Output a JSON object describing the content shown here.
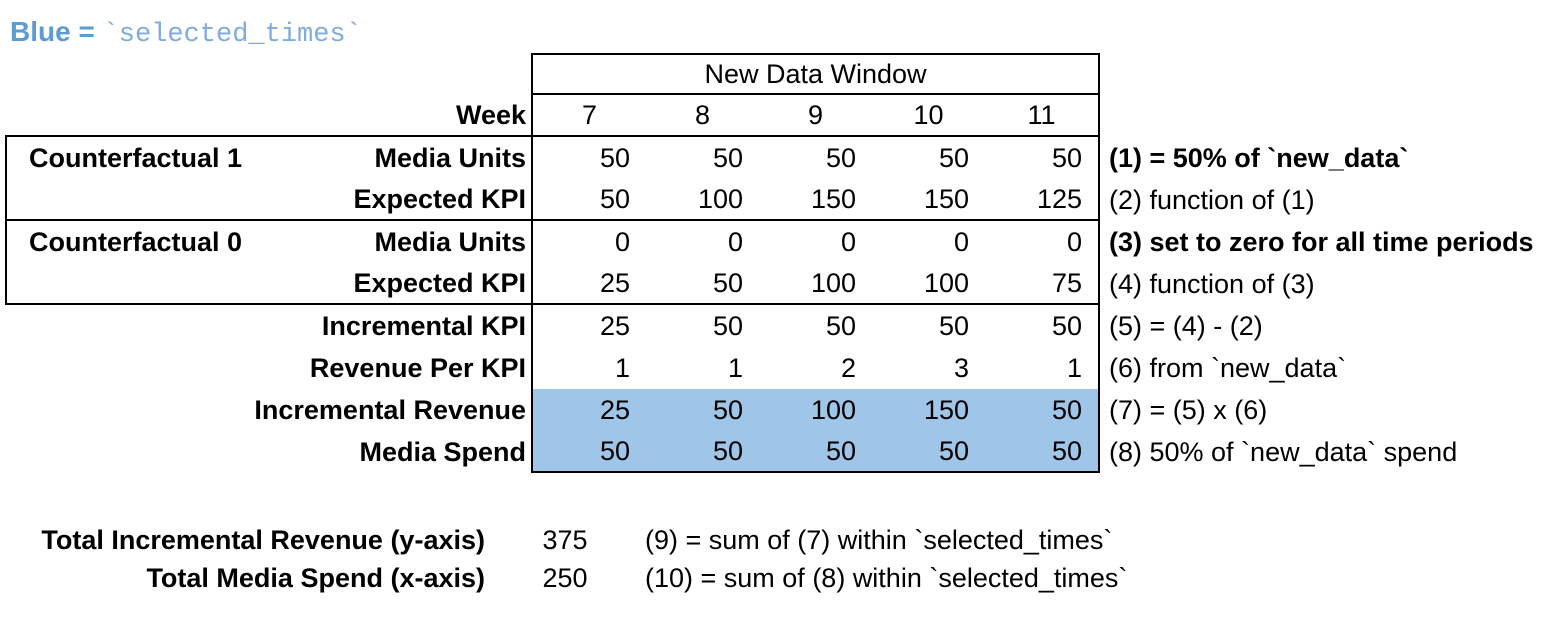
{
  "legend": {
    "prefix": "Blue = ",
    "code": "`selected_times`"
  },
  "colors": {
    "highlight_blue": "#9FC5E8",
    "legend_text_blue": "#5E9BD3",
    "legend_code_blue": "#7FACDB",
    "border": "#000000"
  },
  "table": {
    "window_header": "New Data Window",
    "week_label": "Week",
    "weeks": [
      "7",
      "8",
      "9",
      "10",
      "11"
    ],
    "rows": [
      {
        "group": "Counterfactual 1",
        "label": "Media Units",
        "values": [
          "50",
          "50",
          "50",
          "50",
          "50"
        ],
        "annotation": "(1) = 50% of `new_data`"
      },
      {
        "group": "",
        "label": "Expected KPI",
        "values": [
          "50",
          "100",
          "150",
          "150",
          "125"
        ],
        "annotation": "(2) function of (1)"
      },
      {
        "group": "Counterfactual 0",
        "label": "Media Units",
        "values": [
          "0",
          "0",
          "0",
          "0",
          "0"
        ],
        "annotation": "(3) set to zero for all time periods"
      },
      {
        "group": "",
        "label": "Expected KPI",
        "values": [
          "25",
          "50",
          "100",
          "100",
          "75"
        ],
        "annotation": "(4) function of (3)"
      },
      {
        "group": "",
        "label": "Incremental KPI",
        "values": [
          "25",
          "50",
          "50",
          "50",
          "50"
        ],
        "annotation": "(5) = (4) - (2)"
      },
      {
        "group": "",
        "label": "Revenue Per KPI",
        "values": [
          "1",
          "1",
          "2",
          "3",
          "1"
        ],
        "annotation": "(6) from `new_data`"
      },
      {
        "group": "",
        "label": "Incremental Revenue",
        "values": [
          "25",
          "50",
          "100",
          "150",
          "50"
        ],
        "annotation": "(7) = (5) x (6)",
        "highlighted": true
      },
      {
        "group": "",
        "label": "Media Spend",
        "values": [
          "50",
          "50",
          "50",
          "50",
          "50"
        ],
        "annotation": "(8) 50% of `new_data` spend",
        "highlighted": true
      }
    ]
  },
  "summary": [
    {
      "label": "Total Incremental Revenue (y-axis)",
      "value": "375",
      "annotation": "(9) = sum of (7) within `selected_times`"
    },
    {
      "label": "Total Media Spend (x-axis)",
      "value": "250",
      "annotation": "(10) = sum of (8) within `selected_times`"
    }
  ]
}
